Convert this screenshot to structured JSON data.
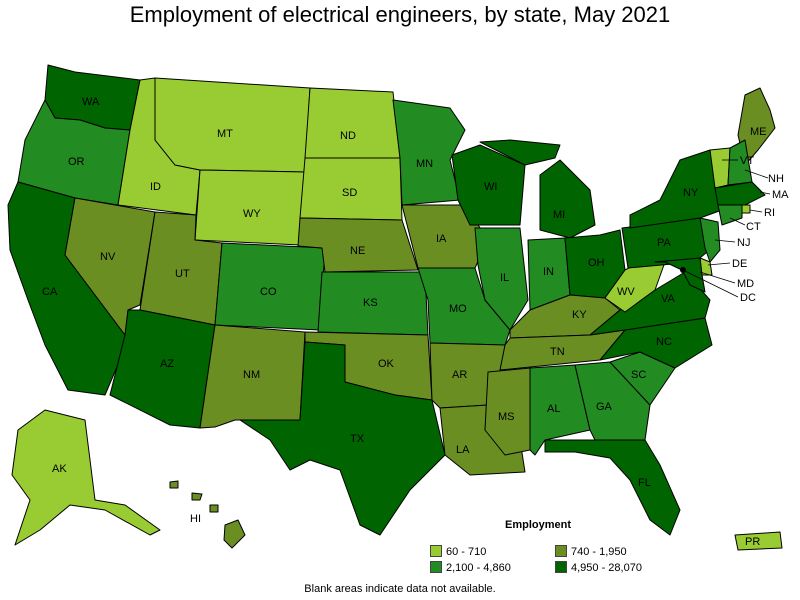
{
  "title": "Employment of electrical engineers, by state, May 2021",
  "note": "Blank areas indicate data not available.",
  "legend": {
    "title": "Employment",
    "bins": [
      {
        "label": "60 - 710",
        "color": "#99cc33"
      },
      {
        "label": "740 - 1,950",
        "color": "#6b8e23"
      },
      {
        "label": "2,100 - 4,860",
        "color": "#228b22"
      },
      {
        "label": "4,950 - 28,070",
        "color": "#006400"
      }
    ]
  },
  "states": {
    "WA": {
      "label": "WA",
      "bin": 3
    },
    "OR": {
      "label": "OR",
      "bin": 2
    },
    "CA": {
      "label": "CA",
      "bin": 3
    },
    "ID": {
      "label": "ID",
      "bin": 0
    },
    "NV": {
      "label": "NV",
      "bin": 1
    },
    "MT": {
      "label": "MT",
      "bin": 0
    },
    "WY": {
      "label": "WY",
      "bin": 0
    },
    "UT": {
      "label": "UT",
      "bin": 1
    },
    "AZ": {
      "label": "AZ",
      "bin": 3
    },
    "CO": {
      "label": "CO",
      "bin": 2
    },
    "NM": {
      "label": "NM",
      "bin": 1
    },
    "ND": {
      "label": "ND",
      "bin": 0
    },
    "SD": {
      "label": "SD",
      "bin": 0
    },
    "NE": {
      "label": "NE",
      "bin": 1
    },
    "KS": {
      "label": "KS",
      "bin": 2
    },
    "OK": {
      "label": "OK",
      "bin": 1
    },
    "TX": {
      "label": "TX",
      "bin": 3
    },
    "MN": {
      "label": "MN",
      "bin": 2
    },
    "IA": {
      "label": "IA",
      "bin": 1
    },
    "MO": {
      "label": "MO",
      "bin": 2
    },
    "AR": {
      "label": "AR",
      "bin": 1
    },
    "LA": {
      "label": "LA",
      "bin": 1
    },
    "WI": {
      "label": "WI",
      "bin": 3
    },
    "IL": {
      "label": "IL",
      "bin": 2
    },
    "MI": {
      "label": "MI",
      "bin": 3
    },
    "IN": {
      "label": "IN",
      "bin": 2
    },
    "OH": {
      "label": "OH",
      "bin": 3
    },
    "KY": {
      "label": "KY",
      "bin": 1
    },
    "TN": {
      "label": "TN",
      "bin": 1
    },
    "MS": {
      "label": "MS",
      "bin": 1
    },
    "AL": {
      "label": "AL",
      "bin": 2
    },
    "GA": {
      "label": "GA",
      "bin": 2
    },
    "FL": {
      "label": "FL",
      "bin": 3
    },
    "SC": {
      "label": "SC",
      "bin": 2
    },
    "NC": {
      "label": "NC",
      "bin": 3
    },
    "VA": {
      "label": "VA",
      "bin": 3
    },
    "WV": {
      "label": "WV",
      "bin": 0
    },
    "PA": {
      "label": "PA",
      "bin": 3
    },
    "NY": {
      "label": "NY",
      "bin": 3
    },
    "ME": {
      "label": "ME",
      "bin": 1
    },
    "VT": {
      "label": "VT",
      "bin": 0
    },
    "NH": {
      "label": "NH",
      "bin": 2
    },
    "MA": {
      "label": "MA",
      "bin": 3
    },
    "RI": {
      "label": "RI",
      "bin": 0
    },
    "CT": {
      "label": "CT",
      "bin": 2
    },
    "NJ": {
      "label": "NJ",
      "bin": 2
    },
    "DE": {
      "label": "DE",
      "bin": 0
    },
    "MD": {
      "label": "MD",
      "bin": 3
    },
    "DC": {
      "label": "DC",
      "bin": 3
    },
    "AK": {
      "label": "AK",
      "bin": 0
    },
    "HI": {
      "label": "HI",
      "bin": 1
    },
    "PR": {
      "label": "PR",
      "bin": 0
    }
  }
}
